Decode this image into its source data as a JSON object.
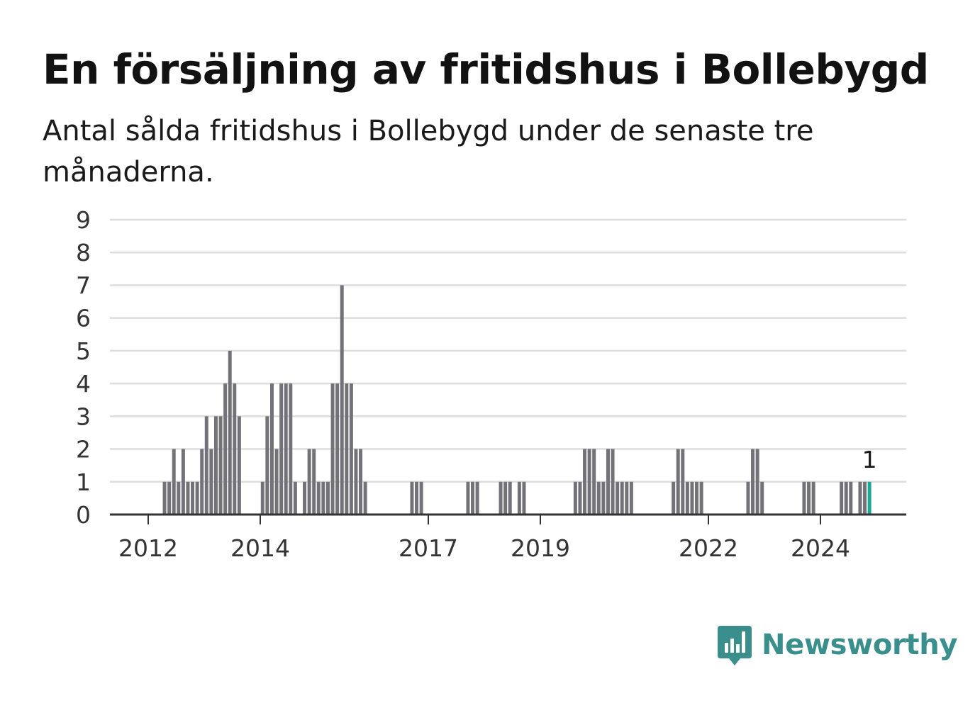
{
  "header": {
    "title": "En försäljning av fritidshus i Bollebygd",
    "subtitle": "Antal sålda fritidshus i Bollebygd under de senaste tre månaderna."
  },
  "brand": {
    "name": "Newsworthy",
    "icon": "newsworthy-logo-icon",
    "color": "#3a8f8d"
  },
  "chart_data": {
    "type": "bar",
    "ylim": [
      0,
      9
    ],
    "y_ticks": [
      "0",
      "1",
      "2",
      "3",
      "4",
      "5",
      "6",
      "7",
      "8",
      "9"
    ],
    "x_ticks": [
      {
        "label": "2012",
        "t": 2012.0
      },
      {
        "label": "2014",
        "t": 2014.0
      },
      {
        "label": "2017",
        "t": 2017.0
      },
      {
        "label": "2019",
        "t": 2019.0
      },
      {
        "label": "2022",
        "t": 2022.0
      },
      {
        "label": "2024",
        "t": 2024.0
      }
    ],
    "grid": true,
    "bar_color": "#737278",
    "highlight_color": "#1aa898",
    "highlight_label": "1",
    "series": [
      {
        "values": [
          {
            "x": "2012-04",
            "y": 1
          },
          {
            "x": "2012-05",
            "y": 1
          },
          {
            "x": "2012-06",
            "y": 2
          },
          {
            "x": "2012-07",
            "y": 1
          },
          {
            "x": "2012-08",
            "y": 2
          },
          {
            "x": "2012-09",
            "y": 1
          },
          {
            "x": "2012-10",
            "y": 1
          },
          {
            "x": "2012-11",
            "y": 1
          },
          {
            "x": "2012-12",
            "y": 2
          },
          {
            "x": "2013-01",
            "y": 3
          },
          {
            "x": "2013-02",
            "y": 2
          },
          {
            "x": "2013-03",
            "y": 3
          },
          {
            "x": "2013-04",
            "y": 3
          },
          {
            "x": "2013-05",
            "y": 4
          },
          {
            "x": "2013-06",
            "y": 5
          },
          {
            "x": "2013-07",
            "y": 4
          },
          {
            "x": "2013-08",
            "y": 3
          },
          {
            "x": "2014-01",
            "y": 1
          },
          {
            "x": "2014-02",
            "y": 3
          },
          {
            "x": "2014-03",
            "y": 4
          },
          {
            "x": "2014-04",
            "y": 2
          },
          {
            "x": "2014-05",
            "y": 4
          },
          {
            "x": "2014-06",
            "y": 4
          },
          {
            "x": "2014-07",
            "y": 4
          },
          {
            "x": "2014-08",
            "y": 1
          },
          {
            "x": "2014-10",
            "y": 1
          },
          {
            "x": "2014-11",
            "y": 2
          },
          {
            "x": "2014-12",
            "y": 2
          },
          {
            "x": "2015-01",
            "y": 1
          },
          {
            "x": "2015-02",
            "y": 1
          },
          {
            "x": "2015-03",
            "y": 1
          },
          {
            "x": "2015-04",
            "y": 4
          },
          {
            "x": "2015-05",
            "y": 4
          },
          {
            "x": "2015-06",
            "y": 7
          },
          {
            "x": "2015-07",
            "y": 4
          },
          {
            "x": "2015-08",
            "y": 4
          },
          {
            "x": "2015-09",
            "y": 2
          },
          {
            "x": "2015-10",
            "y": 2
          },
          {
            "x": "2015-11",
            "y": 1
          },
          {
            "x": "2016-09",
            "y": 1
          },
          {
            "x": "2016-10",
            "y": 1
          },
          {
            "x": "2016-11",
            "y": 1
          },
          {
            "x": "2017-09",
            "y": 1
          },
          {
            "x": "2017-10",
            "y": 1
          },
          {
            "x": "2017-11",
            "y": 1
          },
          {
            "x": "2018-04",
            "y": 1
          },
          {
            "x": "2018-05",
            "y": 1
          },
          {
            "x": "2018-06",
            "y": 1
          },
          {
            "x": "2018-08",
            "y": 1
          },
          {
            "x": "2018-09",
            "y": 1
          },
          {
            "x": "2019-08",
            "y": 1
          },
          {
            "x": "2019-09",
            "y": 1
          },
          {
            "x": "2019-10",
            "y": 2
          },
          {
            "x": "2019-11",
            "y": 2
          },
          {
            "x": "2019-12",
            "y": 2
          },
          {
            "x": "2020-01",
            "y": 1
          },
          {
            "x": "2020-02",
            "y": 1
          },
          {
            "x": "2020-03",
            "y": 2
          },
          {
            "x": "2020-04",
            "y": 2
          },
          {
            "x": "2020-05",
            "y": 1
          },
          {
            "x": "2020-06",
            "y": 1
          },
          {
            "x": "2020-07",
            "y": 1
          },
          {
            "x": "2020-08",
            "y": 1
          },
          {
            "x": "2021-05",
            "y": 1
          },
          {
            "x": "2021-06",
            "y": 2
          },
          {
            "x": "2021-07",
            "y": 2
          },
          {
            "x": "2021-08",
            "y": 1
          },
          {
            "x": "2021-09",
            "y": 1
          },
          {
            "x": "2021-10",
            "y": 1
          },
          {
            "x": "2021-11",
            "y": 1
          },
          {
            "x": "2022-09",
            "y": 1
          },
          {
            "x": "2022-10",
            "y": 2
          },
          {
            "x": "2022-11",
            "y": 2
          },
          {
            "x": "2022-12",
            "y": 1
          },
          {
            "x": "2023-09",
            "y": 1
          },
          {
            "x": "2023-10",
            "y": 1
          },
          {
            "x": "2023-11",
            "y": 1
          },
          {
            "x": "2024-05",
            "y": 1
          },
          {
            "x": "2024-06",
            "y": 1
          },
          {
            "x": "2024-07",
            "y": 1
          },
          {
            "x": "2024-09",
            "y": 1
          },
          {
            "x": "2024-10",
            "y": 1
          },
          {
            "x": "2024-11",
            "y": 1
          }
        ]
      }
    ]
  }
}
